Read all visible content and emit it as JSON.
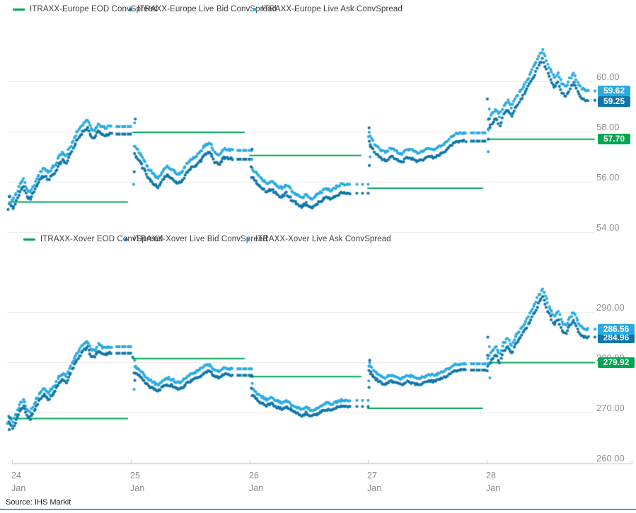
{
  "source_note": "Source: IHS Markit",
  "colors": {
    "eod_green": "#00A651",
    "bid_blue": "#0E76A8",
    "ask_blue": "#29ABE2",
    "grid": "#E9E9E9",
    "axis_line": "#C9C9C9",
    "bottom_rule": "#29ABE2"
  },
  "xaxis": {
    "ticks": [
      {
        "day": "24",
        "month": "Jan"
      },
      {
        "day": "25",
        "month": "Jan"
      },
      {
        "day": "26",
        "month": "Jan"
      },
      {
        "day": "27",
        "month": "Jan"
      },
      {
        "day": "28",
        "month": "Jan"
      }
    ]
  },
  "chart_data": [
    {
      "type": "scatter",
      "title": "ITRAXX-Europe ConvSpread",
      "ylim": [
        53.8,
        61.6
      ],
      "yticks": [
        60,
        58,
        56,
        54
      ],
      "ytick_labels": [
        "60.00",
        "58.00",
        "56.00",
        "54.00"
      ],
      "x_categories": [
        "24 Jan",
        "25 Jan",
        "26 Jan",
        "27 Jan",
        "28 Jan"
      ],
      "grid": true,
      "legend_position": "top",
      "legend": [
        {
          "label": "ITRAXX-Europe EOD ConvSpread",
          "marker": "dash",
          "color_key": "eod_green"
        },
        {
          "label": "ITRAXX-Europe Live Bid ConvSpread",
          "marker": "dot",
          "color_key": "bid_blue"
        },
        {
          "label": "ITRAXX-Europe Live Ask ConvSpread",
          "marker": "dot",
          "color_key": "ask_blue"
        }
      ],
      "end_labels": [
        {
          "text": "59.62",
          "value": 59.62,
          "color_key": "ask_blue"
        },
        {
          "text": "59.25",
          "value": 59.25,
          "color_key": "bid_blue"
        },
        {
          "text": "57.70",
          "value": 57.7,
          "color_key": "eod_green"
        }
      ],
      "eod_segments": [
        {
          "day": 0,
          "f0": -0.024,
          "f1": 0.972,
          "value": 55.2
        },
        {
          "day": 1,
          "f0": 0.018,
          "f1": 0.954,
          "value": 57.97
        },
        {
          "day": 2,
          "f0": 0.0,
          "f1": 0.936,
          "value": 57.05
        },
        {
          "day": 3,
          "f0": 0.0,
          "f1": 0.966,
          "value": 55.75
        },
        {
          "day": 4,
          "f0": 0.012,
          "f1": 0.906,
          "value": 57.7
        }
      ],
      "days": [
        {
          "day": 0,
          "f0": -0.024,
          "f1": 0.846,
          "tail": "dash",
          "bid_offset": 0.3,
          "head_scatter": [
            54.9,
            55.15,
            55.4
          ],
          "ask": [
            55.45,
            55.25,
            55.55,
            55.9,
            56.1,
            55.7,
            55.6,
            55.9,
            56.2,
            56.45,
            56.55,
            56.35,
            56.55,
            56.7,
            57.0,
            57.15,
            57.05,
            57.35,
            57.65,
            57.95,
            58.15,
            58.35,
            58.45,
            58.1,
            58.05,
            58.3,
            58.2,
            58.15,
            58.2,
            58.2
          ]
        },
        {
          "day": 1,
          "f0": 0.03,
          "f1": 0.864,
          "tail": "dash",
          "bid_offset": 0.35,
          "head_scatter": [
            58.5,
            58.35,
            56.4,
            55.9
          ],
          "ask": [
            57.45,
            57.2,
            56.85,
            56.5,
            56.3,
            56.12,
            56.45,
            56.6,
            56.5,
            56.3,
            56.35,
            56.7,
            56.9,
            57.0,
            57.2,
            57.45,
            57.55,
            57.15,
            57.05,
            57.3,
            57.28,
            57.25
          ]
        },
        {
          "day": 2,
          "f0": 0.018,
          "f1": 0.855,
          "tail": "dots",
          "bid_offset": 0.35,
          "head_scatter": [
            57.3,
            56.9,
            56.6
          ],
          "ask": [
            56.55,
            56.3,
            56.1,
            55.95,
            56.05,
            55.85,
            55.75,
            55.9,
            55.65,
            55.5,
            55.35,
            55.5,
            55.3,
            55.45,
            55.6,
            55.75,
            55.65,
            55.8,
            55.9,
            55.9,
            55.9
          ]
        },
        {
          "day": 3,
          "f0": 0.012,
          "f1": 0.834,
          "tail": "dash",
          "bid_offset": 0.33,
          "head_scatter": [
            58.15,
            57.8,
            57.4,
            57.0,
            56.65
          ],
          "ask": [
            57.95,
            57.5,
            57.3,
            57.15,
            57.35,
            57.2,
            57.12,
            57.3,
            57.25,
            57.15,
            57.22,
            57.35,
            57.3,
            57.42,
            57.55,
            57.75,
            57.95,
            57.95,
            57.95
          ]
        },
        {
          "day": 4,
          "f0": 0.012,
          "f1": 0.864,
          "tail": "dots",
          "bid_offset": 0.37,
          "head_scatter": [
            59.3,
            58.9,
            58.5,
            58.1,
            57.7,
            57.2
          ],
          "ask": [
            58.45,
            58.7,
            58.9,
            58.6,
            59.05,
            59.25,
            58.95,
            59.3,
            59.55,
            59.8,
            60.05,
            60.35,
            60.65,
            61.0,
            61.25,
            60.85,
            60.45,
            60.15,
            60.35,
            59.9,
            59.78,
            60.1,
            60.32,
            59.95,
            59.72,
            59.62,
            59.62
          ]
        }
      ]
    },
    {
      "type": "scatter",
      "title": "ITRAXX-Xover ConvSpread",
      "ylim": [
        258,
        296
      ],
      "yticks": [
        290,
        280,
        270,
        260
      ],
      "ytick_labels": [
        "290.00",
        "280.00",
        "270.00",
        "260.00"
      ],
      "x_categories": [
        "24 Jan",
        "25 Jan",
        "26 Jan",
        "27 Jan",
        "28 Jan"
      ],
      "grid": true,
      "legend_position": "top",
      "legend": [
        {
          "label": "ITRAXX-Xover EOD ConvSpread",
          "marker": "dash",
          "color_key": "eod_green"
        },
        {
          "label": "ITRAXX-Xover Live Bid ConvSpread",
          "marker": "dot",
          "color_key": "bid_blue"
        },
        {
          "label": "ITRAXX-Xover Live Ask ConvSpread",
          "marker": "dot",
          "color_key": "ask_blue"
        }
      ],
      "end_labels": [
        {
          "text": "286.56",
          "value": 286.56,
          "color_key": "ask_blue"
        },
        {
          "text": "284.96",
          "value": 284.96,
          "color_key": "bid_blue"
        },
        {
          "text": "279.92",
          "value": 279.92,
          "color_key": "eod_green"
        }
      ],
      "eod_segments": [
        {
          "day": 0,
          "f0": -0.024,
          "f1": 0.972,
          "value": 268.8
        },
        {
          "day": 1,
          "f0": 0.018,
          "f1": 0.954,
          "value": 280.75
        },
        {
          "day": 2,
          "f0": 0.0,
          "f1": 0.936,
          "value": 277.15
        },
        {
          "day": 3,
          "f0": 0.0,
          "f1": 0.966,
          "value": 270.85
        },
        {
          "day": 4,
          "f0": 0.012,
          "f1": 0.906,
          "value": 279.92
        }
      ],
      "days": [
        {
          "day": 0,
          "f0": -0.024,
          "f1": 0.846,
          "tail": "dash",
          "bid_offset": 1.3,
          "head_scatter": [
            266.6,
            267.8,
            269.0
          ],
          "ask": [
            269.3,
            268.3,
            269.8,
            271.6,
            272.6,
            270.6,
            270.1,
            271.6,
            273.1,
            274.3,
            274.8,
            273.8,
            274.8,
            275.6,
            277.1,
            277.8,
            277.3,
            278.8,
            280.3,
            281.8,
            282.8,
            283.8,
            284.3,
            282.6,
            282.3,
            283.6,
            283.1,
            282.8,
            283.1,
            283.1
          ]
        },
        {
          "day": 1,
          "f0": 0.03,
          "f1": 0.864,
          "tail": "dash",
          "bid_offset": 1.3,
          "head_scatter": [
            281.0,
            280.4,
            276.4,
            274.6
          ],
          "ask": [
            279.3,
            278.6,
            277.6,
            276.6,
            276.0,
            275.5,
            276.4,
            276.9,
            276.6,
            276.0,
            276.1,
            277.1,
            277.7,
            278.0,
            278.6,
            279.3,
            279.6,
            278.4,
            278.2,
            278.9,
            278.8,
            278.7
          ]
        },
        {
          "day": 2,
          "f0": 0.018,
          "f1": 0.855,
          "tail": "dots",
          "bid_offset": 1.2,
          "head_scatter": [
            277.2,
            275.8,
            274.8
          ],
          "ask": [
            274.7,
            273.8,
            273.1,
            272.6,
            273.0,
            272.3,
            271.9,
            272.4,
            271.6,
            271.1,
            270.6,
            271.1,
            270.4,
            270.9,
            271.4,
            271.9,
            271.6,
            272.1,
            272.4,
            272.4,
            272.4
          ]
        },
        {
          "day": 3,
          "f0": 0.012,
          "f1": 0.834,
          "tail": "dash",
          "bid_offset": 1.25,
          "head_scatter": [
            280.4,
            279.2,
            277.7,
            276.3,
            275.0
          ],
          "ask": [
            279.7,
            278.1,
            277.4,
            276.8,
            277.5,
            277.0,
            276.7,
            277.4,
            277.2,
            276.8,
            277.1,
            277.5,
            277.4,
            277.8,
            278.3,
            279.0,
            279.7,
            279.7,
            279.7
          ]
        },
        {
          "day": 4,
          "f0": 0.012,
          "f1": 0.864,
          "tail": "dots",
          "bid_offset": 1.6,
          "head_scatter": [
            285.0,
            283.1,
            281.4,
            279.7,
            278.3,
            276.9
          ],
          "ask": [
            280.9,
            282.1,
            283.1,
            281.6,
            283.8,
            284.8,
            283.3,
            285.0,
            286.2,
            287.4,
            288.6,
            290.1,
            291.6,
            293.3,
            294.5,
            292.5,
            290.6,
            289.1,
            290.1,
            287.9,
            287.3,
            288.9,
            290.0,
            288.2,
            287.0,
            286.6,
            286.6
          ]
        }
      ]
    }
  ]
}
